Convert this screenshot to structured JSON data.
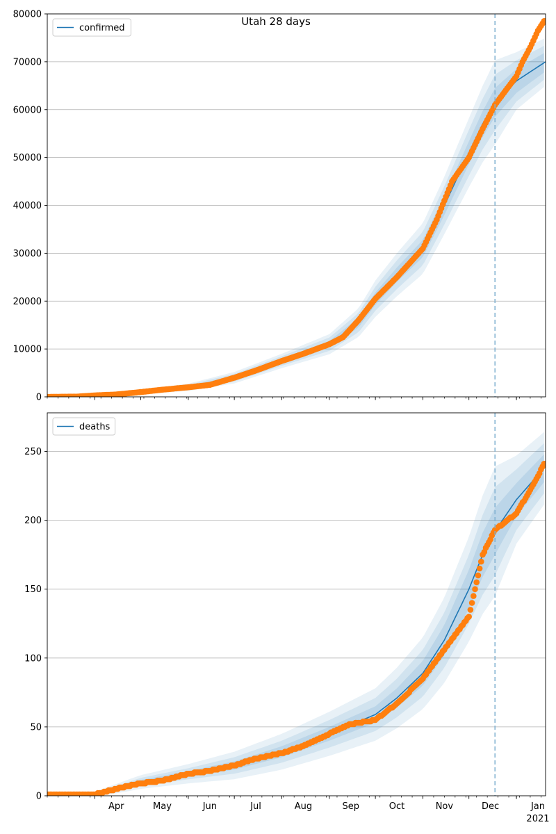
{
  "figure": {
    "title": "Utah 28 days"
  },
  "chart_data": [
    {
      "type": "line",
      "legend": {
        "entries": [
          "confirmed"
        ],
        "placement": "upper-left"
      },
      "x_axis": {
        "type": "date",
        "range": [
          "2020-03-01",
          "2021-01-20"
        ],
        "tick_labels": [
          "Apr",
          "May",
          "Jun",
          "Jul",
          "Aug",
          "Sep",
          "Oct",
          "Nov",
          "Dec",
          "Jan"
        ],
        "year_label": "2021",
        "tick_labels_visible": false
      },
      "y_axis": {
        "range": [
          0,
          80000
        ],
        "ticks": [
          0,
          10000,
          20000,
          30000,
          40000,
          50000,
          60000,
          70000,
          80000
        ]
      },
      "grid": "horizontal",
      "forecast_start": "2020-12-18",
      "model": {
        "x": [
          "2020-03-01",
          "2020-04-01",
          "2020-05-01",
          "2020-06-01",
          "2020-07-01",
          "2020-08-01",
          "2020-09-01",
          "2020-09-20",
          "2020-10-01",
          "2020-10-15",
          "2020-11-01",
          "2020-11-15",
          "2020-12-01",
          "2020-12-10",
          "2020-12-18",
          "2021-01-01",
          "2021-01-20"
        ],
        "y": [
          0,
          250,
          1000,
          2000,
          4000,
          7500,
          11000,
          15500,
          20500,
          25500,
          31000,
          40000,
          51000,
          57000,
          61500,
          66000,
          70000
        ],
        "band_halfwidths": [
          [
            0,
            50,
            150,
            250,
            400,
            500,
            700,
            1000,
            1300,
            1500,
            1800,
            2000,
            2400,
            2700,
            3000,
            2500,
            2000
          ],
          [
            0,
            100,
            300,
            500,
            800,
            1000,
            1400,
            2000,
            2500,
            3000,
            3500,
            4000,
            4800,
            5300,
            5800,
            4300,
            3500
          ],
          [
            0,
            150,
            450,
            750,
            1200,
            1500,
            2100,
            3000,
            3800,
            4500,
            5300,
            6000,
            7200,
            8000,
            8800,
            6000,
            5000
          ]
        ]
      },
      "observed": {
        "x": [
          "2020-03-01",
          "2020-03-20",
          "2020-04-01",
          "2020-04-15",
          "2020-05-01",
          "2020-05-15",
          "2020-06-01",
          "2020-06-15",
          "2020-07-01",
          "2020-07-15",
          "2020-08-01",
          "2020-08-15",
          "2020-09-01",
          "2020-09-10",
          "2020-09-20",
          "2020-10-01",
          "2020-10-15",
          "2020-11-01",
          "2020-11-10",
          "2020-11-20",
          "2020-12-01",
          "2020-12-10",
          "2020-12-18",
          "2021-01-01",
          "2021-01-05",
          "2021-01-10",
          "2021-01-15",
          "2021-01-19"
        ],
        "y": [
          0,
          50,
          300,
          500,
          1000,
          1500,
          2000,
          2500,
          4000,
          5500,
          7500,
          9000,
          11000,
          12500,
          16000,
          20500,
          25000,
          31000,
          37000,
          45000,
          50000,
          56000,
          61000,
          67000,
          70000,
          73000,
          76500,
          78500
        ]
      }
    },
    {
      "type": "line",
      "legend": {
        "entries": [
          "deaths"
        ],
        "placement": "upper-left"
      },
      "x_axis": {
        "type": "date",
        "range": [
          "2020-03-01",
          "2021-01-20"
        ],
        "tick_labels": [
          "Apr",
          "May",
          "Jun",
          "Jul",
          "Aug",
          "Sep",
          "Oct",
          "Nov",
          "Dec",
          "Jan"
        ],
        "year_label": "2021"
      },
      "y_axis": {
        "range": [
          0,
          278
        ],
        "ticks": [
          0,
          50,
          100,
          150,
          200,
          250
        ]
      },
      "grid": "horizontal",
      "forecast_start": "2020-12-18",
      "model": {
        "x": [
          "2020-03-01",
          "2020-04-01",
          "2020-05-01",
          "2020-06-01",
          "2020-07-01",
          "2020-08-01",
          "2020-09-01",
          "2020-10-01",
          "2020-10-15",
          "2020-11-01",
          "2020-11-15",
          "2020-12-01",
          "2020-12-10",
          "2020-12-18",
          "2021-01-01",
          "2021-01-20"
        ],
        "y": [
          0,
          1,
          10,
          16,
          22,
          32,
          45,
          59,
          71,
          89,
          113,
          150,
          175,
          192,
          215,
          239
        ],
        "band_halfwidths": [
          [
            0,
            0.5,
            1.5,
            2,
            3,
            4,
            5,
            6,
            7,
            9,
            11,
            14,
            16,
            17,
            12,
            10
          ],
          [
            0,
            1,
            3,
            4,
            6,
            8,
            10,
            12,
            14,
            17,
            20,
            25,
            29,
            32,
            22,
            18
          ],
          [
            1,
            2,
            5,
            7,
            10,
            13,
            16,
            19,
            22,
            26,
            31,
            38,
            43,
            47,
            32,
            26
          ]
        ]
      },
      "observed": {
        "x": [
          "2020-03-01",
          "2020-04-01",
          "2020-04-15",
          "2020-05-01",
          "2020-05-15",
          "2020-06-01",
          "2020-06-15",
          "2020-07-01",
          "2020-07-15",
          "2020-08-01",
          "2020-08-15",
          "2020-09-01",
          "2020-09-15",
          "2020-10-01",
          "2020-10-15",
          "2020-11-01",
          "2020-11-15",
          "2020-12-01",
          "2020-12-10",
          "2020-12-18",
          "2021-01-01",
          "2021-01-10",
          "2021-01-15",
          "2021-01-19"
        ],
        "y": [
          1,
          1,
          5,
          9,
          11,
          16,
          18,
          22,
          27,
          31,
          36,
          45,
          52,
          55,
          67,
          85,
          106,
          130,
          175,
          193,
          205,
          222,
          232,
          241
        ]
      }
    }
  ],
  "colors": {
    "model_line": "#1f77b4",
    "band": "#1f77b4",
    "observed": "#ff7f0e",
    "forecast_line": "#7fb0d0",
    "grid": "#b0b0b0"
  }
}
